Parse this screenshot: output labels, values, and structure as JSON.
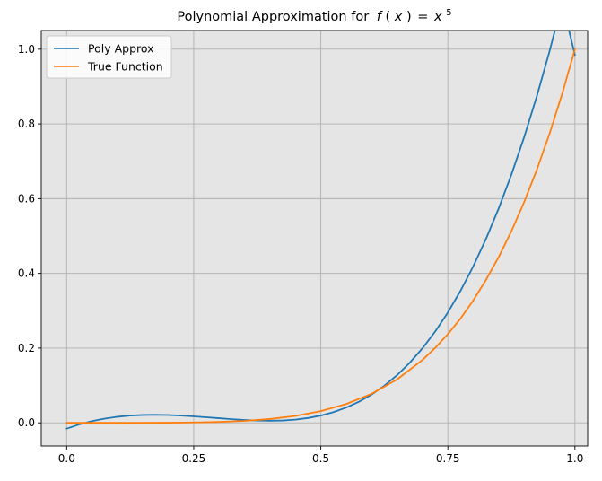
{
  "chart_data": {
    "type": "line",
    "title": "Polynomial Approximation for",
    "title_math": {
      "f": "f",
      "open_paren": "(",
      "x_arg": "x",
      "close_paren": ")",
      "equals": "=",
      "base": "x",
      "exponent": "5"
    },
    "xlabel": "",
    "ylabel": "",
    "xlim": [
      -0.05,
      1.025
    ],
    "ylim": [
      -0.062,
      1.05
    ],
    "xticks": [
      0.0,
      0.25,
      0.5,
      0.75,
      1.0
    ],
    "xtick_labels": [
      "0.0",
      "0.25",
      "0.5",
      "0.75",
      "1.0"
    ],
    "yticks": [
      0.0,
      0.2,
      0.4,
      0.6,
      0.8,
      1.0
    ],
    "ytick_labels": [
      "0.0",
      "0.2",
      "0.4",
      "0.6",
      "0.8",
      "1.0"
    ],
    "grid": true,
    "legend_position": "upper-left",
    "background_color": "#e5e5e5",
    "grid_color": "#b0b0b0",
    "series": [
      {
        "name": "Poly Approx",
        "color": "#1f77b4",
        "x": [
          0.0,
          0.025,
          0.05,
          0.075,
          0.1,
          0.125,
          0.15,
          0.175,
          0.2,
          0.225,
          0.25,
          0.275,
          0.3,
          0.325,
          0.35,
          0.375,
          0.4,
          0.425,
          0.45,
          0.475,
          0.5,
          0.525,
          0.55,
          0.575,
          0.6,
          0.625,
          0.65,
          0.675,
          0.7,
          0.725,
          0.75,
          0.775,
          0.8,
          0.825,
          0.85,
          0.875,
          0.9,
          0.925,
          0.95,
          0.975,
          1.0
        ],
        "y": [
          -0.0156,
          -0.0042,
          0.0046,
          0.0112,
          0.0162,
          0.0193,
          0.021,
          0.0214,
          0.0208,
          0.0194,
          0.0173,
          0.0149,
          0.0123,
          0.0098,
          0.0076,
          0.0061,
          0.0055,
          0.0063,
          0.0086,
          0.0129,
          0.0195,
          0.0286,
          0.0408,
          0.0564,
          0.0757,
          0.0993,
          0.1275,
          0.1607,
          0.1995,
          0.2442,
          0.2954,
          0.3535,
          0.4189,
          0.4922,
          0.5739,
          0.6644,
          0.7643,
          0.8741,
          0.9943,
          1.1254,
          0.9844
        ]
      },
      {
        "name": "True Function",
        "color": "#ff7f0e",
        "x": [
          0.0,
          0.05,
          0.1,
          0.15,
          0.2,
          0.25,
          0.3,
          0.35,
          0.4,
          0.45,
          0.5,
          0.55,
          0.6,
          0.65,
          0.7,
          0.725,
          0.75,
          0.775,
          0.8,
          0.825,
          0.85,
          0.875,
          0.9,
          0.925,
          0.95,
          0.975,
          1.0
        ],
        "y": [
          0.0,
          3e-07,
          1e-05,
          7.6e-05,
          0.00032,
          0.00098,
          0.00243,
          0.00525,
          0.01024,
          0.01845,
          0.03125,
          0.05033,
          0.07776,
          0.11603,
          0.16807,
          0.20053,
          0.2373,
          0.27932,
          0.32768,
          0.38262,
          0.44371,
          0.51291,
          0.59049,
          0.67718,
          0.77378,
          0.8811,
          1.0
        ]
      }
    ]
  }
}
